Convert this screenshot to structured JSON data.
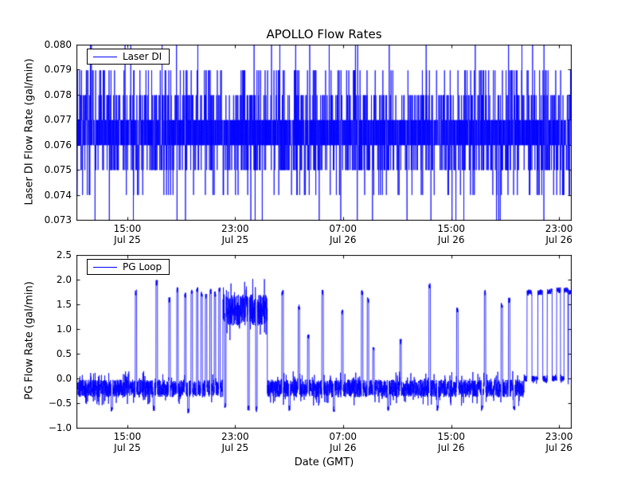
{
  "figure": {
    "background": "#ffffff",
    "axes_color": "#000000"
  },
  "chart_data": [
    {
      "type": "line",
      "title": "APOLLO Flow Rates",
      "xlabel": "",
      "ylabel": "Laser DI Flow Rate (gal/min)",
      "ylim": [
        0.073,
        0.08
      ],
      "grid": false,
      "ytick_labels": [
        "0.080",
        "0.079",
        "0.078",
        "0.077",
        "0.076",
        "0.075",
        "0.074",
        "0.073"
      ],
      "xticks": [
        {
          "time": "15:00",
          "date": "Jul 25",
          "frac": 0.103
        },
        {
          "time": "23:00",
          "date": "Jul 25",
          "frac": 0.321
        },
        {
          "time": "07:00",
          "date": "Jul 26",
          "frac": 0.539
        },
        {
          "time": "15:00",
          "date": "Jul 26",
          "frac": 0.758
        },
        {
          "time": "23:00",
          "date": "Jul 26",
          "frac": 0.976
        }
      ],
      "legend": {
        "label": "Laser DI",
        "position": "upper left"
      },
      "series": [
        {
          "name": "Laser DI",
          "color": "#0000ff",
          "signal": {
            "kind": "quantized",
            "n": 3800,
            "seed": 7,
            "levels": [
              0.073,
              0.074,
              0.075,
              0.076,
              0.077,
              0.078,
              0.079,
              0.08
            ],
            "weights": [
              0.004,
              0.02,
              0.09,
              0.42,
              0.33,
              0.09,
              0.04,
              0.006
            ]
          }
        }
      ]
    },
    {
      "type": "line",
      "title": "",
      "xlabel": "Date (GMT)",
      "ylabel": "PG Flow Rate (gal/min)",
      "ylim": [
        -1.0,
        2.5
      ],
      "grid": false,
      "ytick_labels": [
        "2.5",
        "2.0",
        "1.5",
        "1.0",
        "0.5",
        "0.0",
        "−0.5",
        "−1.0"
      ],
      "xticks": [
        {
          "time": "15:00",
          "date": "Jul 25",
          "frac": 0.103
        },
        {
          "time": "23:00",
          "date": "Jul 25",
          "frac": 0.321
        },
        {
          "time": "07:00",
          "date": "Jul 26",
          "frac": 0.539
        },
        {
          "time": "15:00",
          "date": "Jul 26",
          "frac": 0.758
        },
        {
          "time": "23:00",
          "date": "Jul 26",
          "frac": 0.976
        }
      ],
      "legend": {
        "label": "PG Loop",
        "position": "upper left"
      },
      "series": [
        {
          "name": "PG Loop",
          "color": "#0000ff",
          "signal": {
            "kind": "segmented",
            "n": 4200,
            "seed": 11,
            "segments": [
              {
                "x0": 0.0,
                "x1": 0.295,
                "base": -0.2,
                "noise": 0.18
              },
              {
                "x0": 0.295,
                "x1": 0.385,
                "base": 1.4,
                "noise": 0.32
              },
              {
                "x0": 0.385,
                "x1": 0.905,
                "base": -0.2,
                "noise": 0.18
              },
              {
                "x0": 0.905,
                "x1": 1.0,
                "base": 0.0,
                "noise": 0.06
              }
            ],
            "spikes": [
              {
                "x": 0.119,
                "h": 1.75
              },
              {
                "x": 0.161,
                "h": 1.95
              },
              {
                "x": 0.187,
                "h": 1.6
              },
              {
                "x": 0.203,
                "h": 1.8
              },
              {
                "x": 0.219,
                "h": 1.7
              },
              {
                "x": 0.232,
                "h": 1.75
              },
              {
                "x": 0.243,
                "h": 1.8
              },
              {
                "x": 0.252,
                "h": 1.72
              },
              {
                "x": 0.261,
                "h": 1.68
              },
              {
                "x": 0.27,
                "h": 1.78
              },
              {
                "x": 0.279,
                "h": 1.72
              },
              {
                "x": 0.288,
                "h": 1.8
              },
              {
                "x": 0.416,
                "h": 1.75
              },
              {
                "x": 0.449,
                "h": 1.45
              },
              {
                "x": 0.468,
                "h": 0.85
              },
              {
                "x": 0.497,
                "h": 1.75
              },
              {
                "x": 0.537,
                "h": 1.35
              },
              {
                "x": 0.577,
                "h": 1.75
              },
              {
                "x": 0.589,
                "h": 1.6
              },
              {
                "x": 0.6,
                "h": 0.6
              },
              {
                "x": 0.655,
                "h": 0.75
              },
              {
                "x": 0.714,
                "h": 1.9
              },
              {
                "x": 0.77,
                "h": 1.4
              },
              {
                "x": 0.826,
                "h": 1.75
              },
              {
                "x": 0.86,
                "h": 1.5
              },
              {
                "x": 0.875,
                "h": 1.6
              },
              {
                "x": 0.916,
                "h": 1.75,
                "w": 0.005
              },
              {
                "x": 0.938,
                "h": 1.75,
                "w": 0.005
              },
              {
                "x": 0.957,
                "h": 1.78,
                "w": 0.005
              },
              {
                "x": 0.975,
                "h": 1.8,
                "w": 0.004
              },
              {
                "x": 0.99,
                "h": 1.8,
                "w": 0.004
              },
              {
                "x": 0.998,
                "h": 1.75,
                "w": 0.003
              },
              {
                "x": 0.07,
                "h": -0.62
              },
              {
                "x": 0.155,
                "h": -0.6
              },
              {
                "x": 0.225,
                "h": -0.65
              },
              {
                "x": 0.3,
                "h": -0.55
              },
              {
                "x": 0.347,
                "h": -0.6
              },
              {
                "x": 0.363,
                "h": -0.62
              },
              {
                "x": 0.43,
                "h": -0.6
              },
              {
                "x": 0.52,
                "h": -0.62
              },
              {
                "x": 0.63,
                "h": -0.6
              },
              {
                "x": 0.73,
                "h": -0.6
              },
              {
                "x": 0.82,
                "h": -0.6
              },
              {
                "x": 0.885,
                "h": -0.6
              }
            ]
          }
        }
      ]
    }
  ]
}
